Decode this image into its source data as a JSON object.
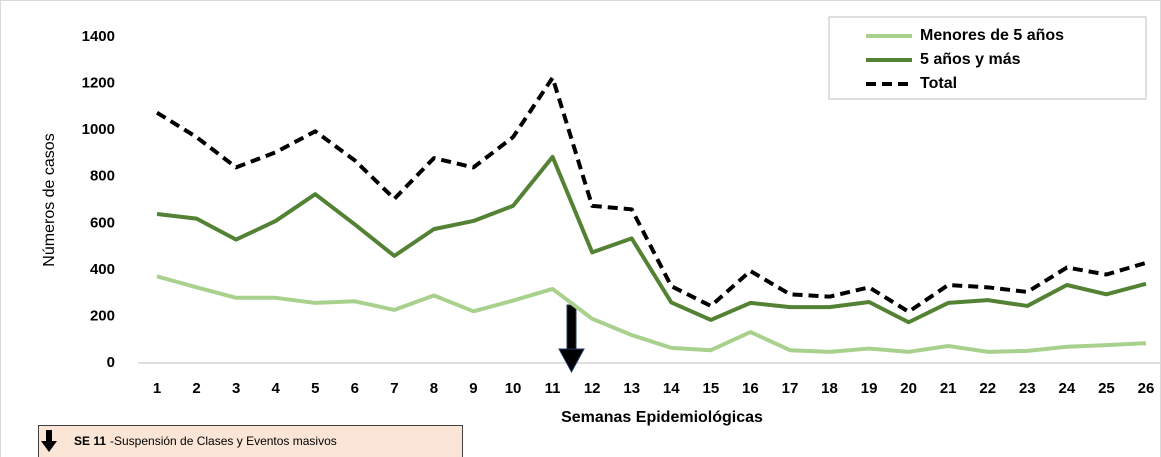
{
  "chart_data": {
    "type": "line",
    "y_label": "Números de casos",
    "x_label": "Semanas Epidemiológicas",
    "categories": [
      "1",
      "2",
      "3",
      "4",
      "5",
      "6",
      "7",
      "8",
      "9",
      "10",
      "11",
      "12",
      "13",
      "14",
      "15",
      "16",
      "17",
      "18",
      "19",
      "20",
      "21",
      "22",
      "23",
      "24",
      "25",
      "26"
    ],
    "ylim": [
      0,
      1400
    ],
    "yticks": [
      0,
      200,
      400,
      600,
      800,
      1000,
      1200,
      1400
    ],
    "legend": "top-right",
    "series": [
      {
        "name": "Menores de 5 años",
        "color": "#a9d18e",
        "dash": false,
        "values": [
          372,
          325,
          280,
          280,
          258,
          265,
          228,
          290,
          222,
          268,
          318,
          190,
          120,
          65,
          55,
          133,
          55,
          48,
          62,
          48,
          73,
          48,
          52,
          70,
          77,
          85
        ]
      },
      {
        "name": "5 años y más",
        "color": "#548235",
        "dash": false,
        "values": [
          640,
          620,
          530,
          610,
          725,
          595,
          460,
          575,
          610,
          675,
          885,
          475,
          535,
          260,
          185,
          258,
          240,
          240,
          262,
          175,
          258,
          270,
          245,
          335,
          295,
          340
        ]
      },
      {
        "name": "Total",
        "color": "#000000",
        "dash": true,
        "values": [
          1075,
          970,
          840,
          905,
          995,
          870,
          705,
          880,
          840,
          970,
          1225,
          675,
          660,
          330,
          245,
          395,
          295,
          285,
          325,
          220,
          335,
          325,
          305,
          410,
          380,
          430
        ]
      }
    ],
    "annotation": {
      "bold": "SE 11",
      "text": "-Suspensión de Clases  y Eventos masivos"
    }
  }
}
